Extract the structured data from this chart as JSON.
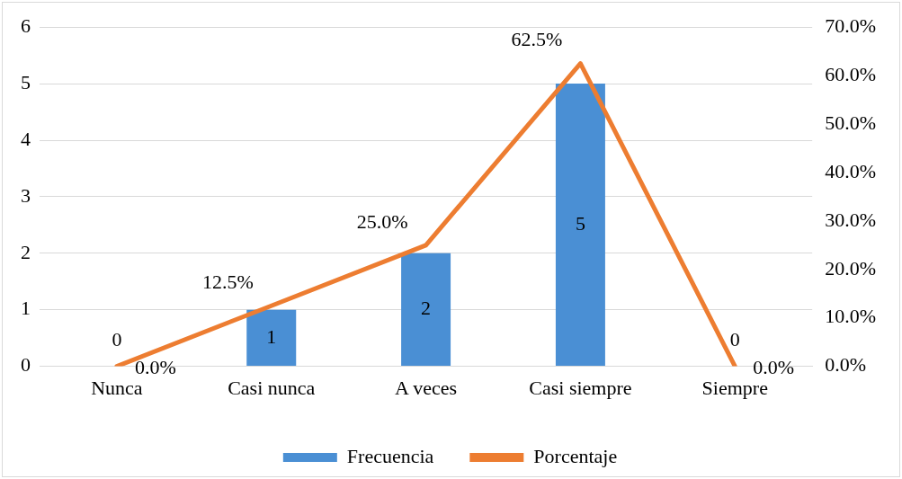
{
  "chart_data": {
    "type": "bar",
    "categories": [
      "Nunca",
      "Casi nunca",
      "A veces",
      "Casi siempre",
      "Siempre"
    ],
    "series": [
      {
        "name": "Frecuencia",
        "color": "#4a8fd4",
        "values": [
          0,
          1,
          2,
          5,
          0
        ],
        "value_labels": [
          "0",
          "1",
          "2",
          "5",
          "0"
        ]
      },
      {
        "name": "Porcentaje",
        "type": "line",
        "axis": "y2",
        "color": "#ed7d31",
        "values": [
          0,
          12.5,
          25,
          62.5,
          0
        ],
        "value_labels": [
          "0.0%",
          "12.5%",
          "25.0%",
          "62.5%",
          "0.0%"
        ],
        "marker": "none"
      }
    ],
    "ylim": [
      0,
      6
    ],
    "yticks": [
      0,
      1,
      2,
      3,
      4,
      5,
      6
    ],
    "y2lim": [
      0,
      70
    ],
    "y2ticks": [
      {
        "value": 0,
        "label": "0.0%"
      },
      {
        "value": 10,
        "label": "10.0%"
      },
      {
        "value": 20,
        "label": "20.0%"
      },
      {
        "value": 30,
        "label": "30.0%"
      },
      {
        "value": 40,
        "label": "40.0%"
      },
      {
        "value": 50,
        "label": "50.0%"
      },
      {
        "value": 60,
        "label": "60.0%"
      },
      {
        "value": 70,
        "label": "70.0%"
      }
    ],
    "grid": "y",
    "legend": "bottom"
  }
}
